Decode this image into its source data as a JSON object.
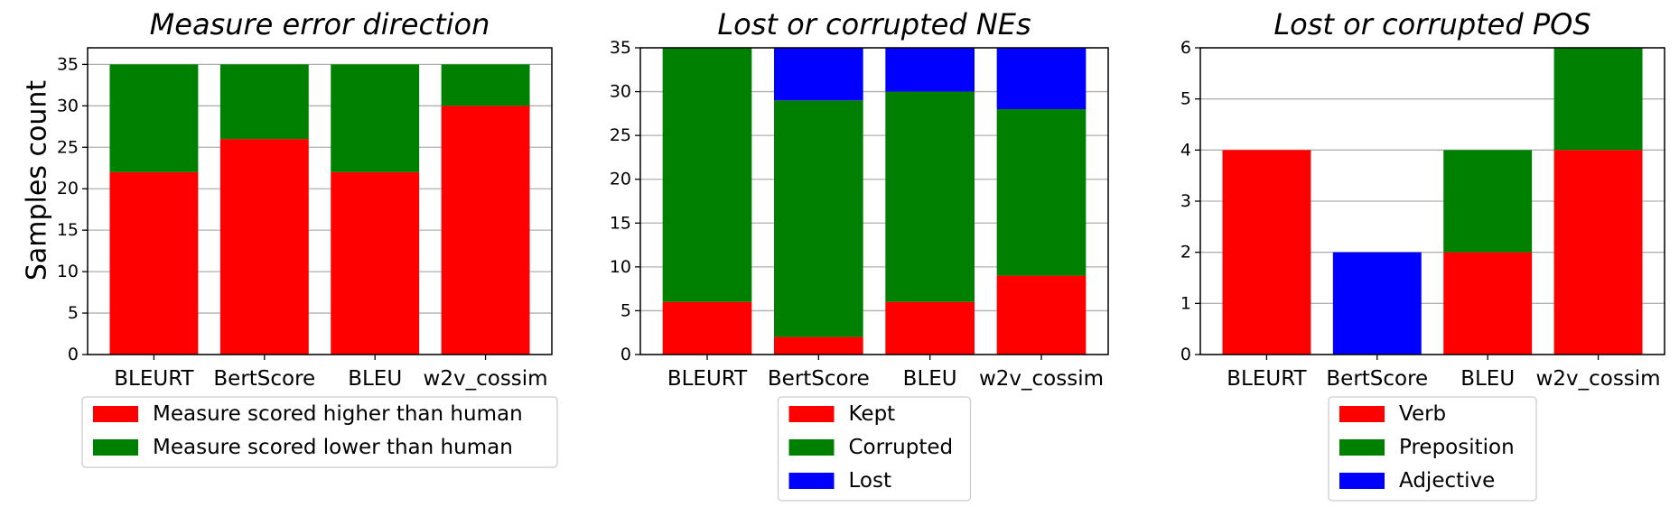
{
  "figure": {
    "ylabel": "Samples count"
  },
  "chart_data": [
    {
      "type": "bar",
      "stacked": true,
      "title": "Measure error direction",
      "categories": [
        "BLEURT",
        "BertScore",
        "BLEU",
        "w2v_cossim"
      ],
      "ylim": [
        0,
        37
      ],
      "yticks": [
        0,
        5,
        10,
        15,
        20,
        25,
        30,
        35
      ],
      "grid": true,
      "legend_placement": "below",
      "series": [
        {
          "name": "Measure scored higher than human",
          "color": "#ff0000",
          "values": [
            22,
            26,
            22,
            30
          ]
        },
        {
          "name": "Measure scored lower than human",
          "color": "#008000",
          "values": [
            13,
            9,
            13,
            5
          ]
        }
      ]
    },
    {
      "type": "bar",
      "stacked": true,
      "title": "Lost or corrupted NEs",
      "categories": [
        "BLEURT",
        "BertScore",
        "BLEU",
        "w2v_cossim"
      ],
      "ylim": [
        0,
        35
      ],
      "yticks": [
        0,
        5,
        10,
        15,
        20,
        25,
        30,
        35
      ],
      "grid": true,
      "legend_placement": "below",
      "series": [
        {
          "name": "Kept",
          "color": "#ff0000",
          "values": [
            6,
            2,
            6,
            9
          ]
        },
        {
          "name": "Corrupted",
          "color": "#008000",
          "values": [
            29,
            27,
            24,
            19
          ]
        },
        {
          "name": "Lost",
          "color": "#0000ff",
          "values": [
            0,
            6,
            5,
            7
          ]
        }
      ]
    },
    {
      "type": "bar",
      "stacked": true,
      "title": "Lost or corrupted POS",
      "categories": [
        "BLEURT",
        "BertScore",
        "BLEU",
        "w2v_cossim"
      ],
      "ylim": [
        0,
        6
      ],
      "yticks": [
        0,
        1,
        2,
        3,
        4,
        5,
        6
      ],
      "grid": true,
      "legend_placement": "below",
      "series": [
        {
          "name": "Verb",
          "color": "#ff0000",
          "values": [
            4,
            0,
            2,
            4
          ]
        },
        {
          "name": "Preposition",
          "color": "#008000",
          "values": [
            0,
            0,
            2,
            2
          ]
        },
        {
          "name": "Adjective",
          "color": "#0000ff",
          "values": [
            0,
            2,
            0,
            0
          ]
        }
      ]
    }
  ]
}
